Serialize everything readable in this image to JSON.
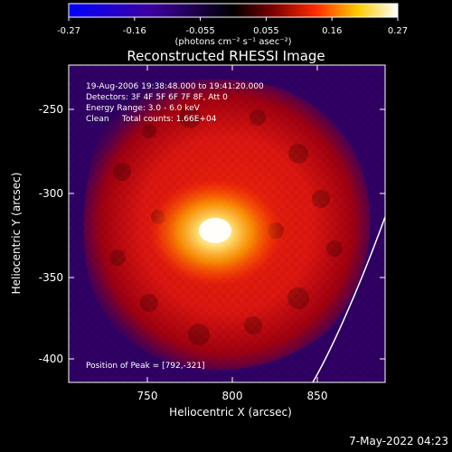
{
  "title": "Reconstructed RHESSI Image",
  "colorbar": {
    "ticks": [
      "-0.27",
      "-0.16",
      "-0.055",
      "0.055",
      "0.16",
      "0.27"
    ],
    "unit_label": "(photons cm⁻² s⁻¹ asec⁻²)"
  },
  "annotation": {
    "line1": "19-Aug-2006 19:38:48.000 to 19:41:20.000",
    "line2": "Detectors: 3F 4F 5F 6F 7F 8F, Att 0",
    "line3": "Energy Range: 3.0 - 6.0 keV",
    "line4": "Clean     Total counts: 1.66E+04",
    "peak": "Position of Peak = [792,-321]"
  },
  "axes": {
    "x_label": "Heliocentric X (arcsec)",
    "y_label": "Heliocentric Y (arcsec)",
    "x_ticks": [
      "750",
      "800",
      "850"
    ],
    "y_ticks": [
      "-250",
      "-300",
      "-350",
      "-400"
    ]
  },
  "timestamp": "7-May-2022 04:23",
  "colors": {
    "background": "#000000",
    "limb_line": "#ffffff",
    "colormap_low": "#0000ff",
    "colormap_mid": "#000000",
    "colormap_high": "#ffffff"
  },
  "image": {
    "description": "Reconstructed solar image"
  }
}
